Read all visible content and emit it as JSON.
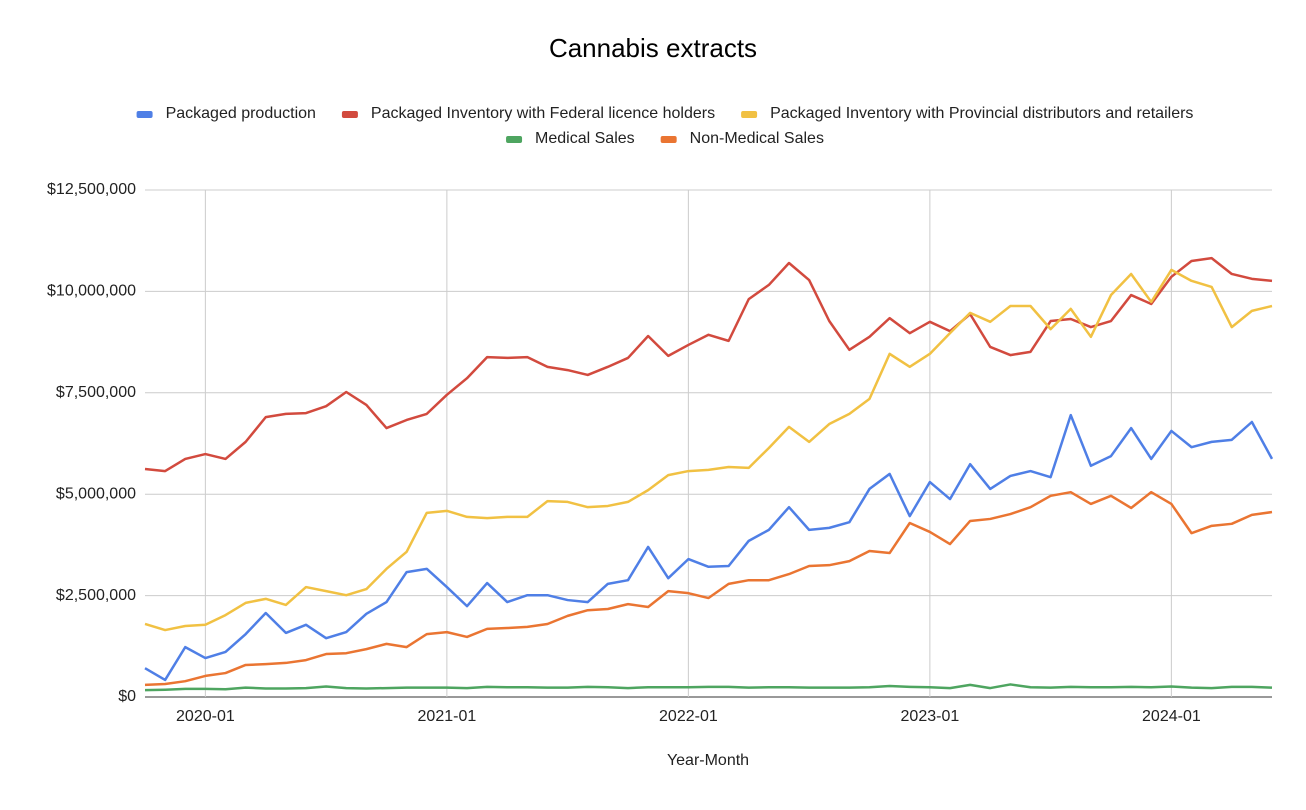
{
  "chart_data": {
    "type": "line",
    "title": "Cannabis extracts",
    "x_label": "Year-Month",
    "categories": [
      "2019-10",
      "2019-11",
      "2019-12",
      "2020-01",
      "2020-02",
      "2020-03",
      "2020-04",
      "2020-05",
      "2020-06",
      "2020-07",
      "2020-08",
      "2020-09",
      "2020-10",
      "2020-11",
      "2020-12",
      "2021-01",
      "2021-02",
      "2021-03",
      "2021-04",
      "2021-05",
      "2021-06",
      "2021-07",
      "2021-08",
      "2021-09",
      "2021-10",
      "2021-11",
      "2021-12",
      "2022-01",
      "2022-02",
      "2022-03",
      "2022-04",
      "2022-05",
      "2022-06",
      "2022-07",
      "2022-08",
      "2022-09",
      "2022-10",
      "2022-11",
      "2022-12",
      "2023-01",
      "2023-02",
      "2023-03",
      "2023-04",
      "2023-05",
      "2023-06",
      "2023-07",
      "2023-08",
      "2023-09",
      "2023-10",
      "2023-11",
      "2023-12",
      "2024-01",
      "2024-02",
      "2024-03",
      "2024-04",
      "2024-05",
      "2024-06"
    ],
    "xticks": [
      "2020-01",
      "2021-01",
      "2022-01",
      "2023-01",
      "2024-01"
    ],
    "ylim": [
      0,
      12500000
    ],
    "yticks": [
      {
        "value": 0,
        "label": "$0"
      },
      {
        "value": 2500000,
        "label": "$2,500,000"
      },
      {
        "value": 5000000,
        "label": "$5,000,000"
      },
      {
        "value": 7500000,
        "label": "$7,500,000"
      },
      {
        "value": 10000000,
        "label": "$10,000,000"
      },
      {
        "value": 12500000,
        "label": "$12,500,000"
      }
    ],
    "grid": true,
    "legend": "top",
    "series": [
      {
        "name": "Packaged production",
        "color": "#4f7fe6",
        "values": [
          710000,
          420000,
          1230000,
          960000,
          1110000,
          1550000,
          2070000,
          1580000,
          1780000,
          1450000,
          1600000,
          2050000,
          2340000,
          3080000,
          3160000,
          2710000,
          2240000,
          2810000,
          2340000,
          2510000,
          2510000,
          2390000,
          2340000,
          2790000,
          2880000,
          3700000,
          2930000,
          3400000,
          3210000,
          3230000,
          3850000,
          4120000,
          4680000,
          4120000,
          4170000,
          4310000,
          5130000,
          5500000,
          4460000,
          5300000,
          4880000,
          5740000,
          5130000,
          5450000,
          5570000,
          5420000,
          6950000,
          5700000,
          5940000,
          6630000,
          5870000,
          6560000,
          6160000,
          6290000,
          6340000,
          6780000,
          5870000
        ]
      },
      {
        "name": "Packaged Inventory with Federal licence holders",
        "color": "#d24a3e",
        "values": [
          5620000,
          5570000,
          5870000,
          5990000,
          5870000,
          6290000,
          6900000,
          6980000,
          7000000,
          7170000,
          7520000,
          7200000,
          6630000,
          6830000,
          6980000,
          7450000,
          7860000,
          8380000,
          8360000,
          8380000,
          8140000,
          8060000,
          7940000,
          8140000,
          8360000,
          8900000,
          8410000,
          8680000,
          8930000,
          8780000,
          9810000,
          10160000,
          10700000,
          10280000,
          9270000,
          8560000,
          8880000,
          9340000,
          8970000,
          9250000,
          9020000,
          9440000,
          8630000,
          8430000,
          8510000,
          9270000,
          9320000,
          9120000,
          9270000,
          9910000,
          9690000,
          10360000,
          10750000,
          10820000,
          10430000,
          10310000,
          10260000
        ]
      },
      {
        "name": "Packaged Inventory with Provincial distributors and retailers",
        "color": "#f1c143",
        "values": [
          1800000,
          1650000,
          1750000,
          1780000,
          2020000,
          2320000,
          2420000,
          2270000,
          2710000,
          2610000,
          2510000,
          2660000,
          3160000,
          3580000,
          4540000,
          4590000,
          4440000,
          4410000,
          4440000,
          4440000,
          4830000,
          4810000,
          4680000,
          4710000,
          4810000,
          5100000,
          5470000,
          5570000,
          5600000,
          5670000,
          5650000,
          6140000,
          6660000,
          6290000,
          6730000,
          6980000,
          7350000,
          8460000,
          8140000,
          8460000,
          8970000,
          9470000,
          9250000,
          9640000,
          9640000,
          9070000,
          9570000,
          8880000,
          9910000,
          10430000,
          9740000,
          10530000,
          10260000,
          10110000,
          9120000,
          9520000,
          9640000
        ]
      },
      {
        "name": "Medical Sales",
        "color": "#4ea560",
        "values": [
          170000,
          180000,
          200000,
          200000,
          190000,
          230000,
          210000,
          210000,
          220000,
          260000,
          220000,
          210000,
          220000,
          230000,
          230000,
          230000,
          220000,
          250000,
          240000,
          240000,
          230000,
          230000,
          250000,
          240000,
          220000,
          240000,
          240000,
          240000,
          250000,
          250000,
          230000,
          240000,
          240000,
          230000,
          230000,
          230000,
          240000,
          270000,
          250000,
          240000,
          220000,
          300000,
          220000,
          310000,
          240000,
          230000,
          250000,
          240000,
          240000,
          250000,
          240000,
          260000,
          230000,
          220000,
          250000,
          250000,
          230000
        ]
      },
      {
        "name": "Non-Medical Sales",
        "color": "#ea7532",
        "values": [
          300000,
          320000,
          390000,
          520000,
          590000,
          790000,
          810000,
          840000,
          910000,
          1060000,
          1080000,
          1180000,
          1310000,
          1230000,
          1550000,
          1600000,
          1480000,
          1680000,
          1700000,
          1730000,
          1800000,
          2000000,
          2140000,
          2170000,
          2290000,
          2220000,
          2610000,
          2560000,
          2440000,
          2790000,
          2880000,
          2880000,
          3030000,
          3230000,
          3250000,
          3350000,
          3600000,
          3550000,
          4290000,
          4070000,
          3770000,
          4340000,
          4390000,
          4510000,
          4680000,
          4960000,
          5050000,
          4760000,
          4960000,
          4660000,
          5050000,
          4760000,
          4040000,
          4220000,
          4270000,
          4490000,
          4560000
        ]
      }
    ]
  }
}
